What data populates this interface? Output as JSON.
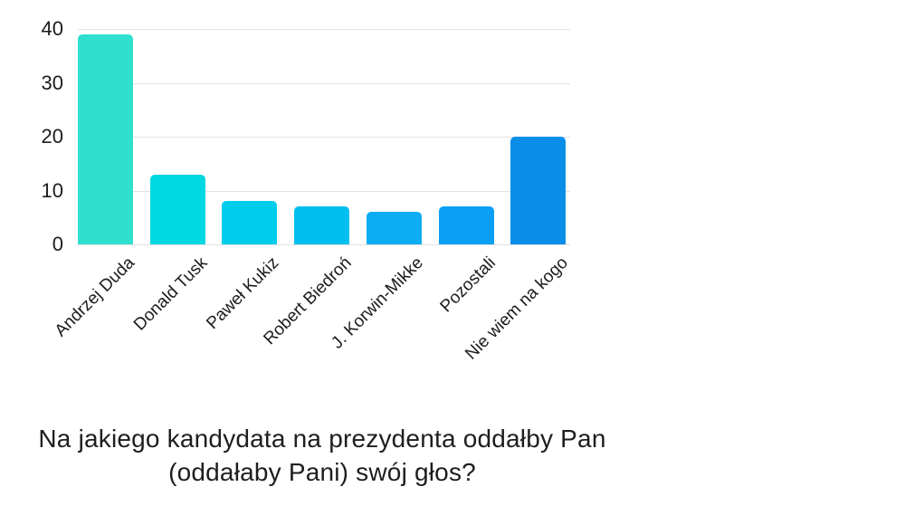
{
  "chart_data": {
    "type": "bar",
    "title": "Na jakiego kandydata na prezydenta oddałby Pan (oddałaby Pani) swój głos?",
    "title_lines": [
      "Na jakiego kandydata na prezydenta oddałby Pan",
      "(oddałaby Pani) swój głos?"
    ],
    "categories": [
      "Andrzej Duda",
      "Donald Tusk",
      "Paweł Kukiz",
      "Robert Biedroń",
      "J. Korwin-Mikke",
      "Pozostali",
      "Nie wiem na kogo"
    ],
    "values": [
      39,
      13,
      8,
      7,
      6,
      7,
      20
    ],
    "bar_colors": [
      "#2ee0cd",
      "#00d8e2",
      "#00cdeb",
      "#00bff0",
      "#0cadf2",
      "#0a9ff3",
      "#0a8fe9"
    ],
    "xlabel": "",
    "ylabel": "",
    "ylim": [
      0,
      40
    ],
    "yticks": [
      0,
      10,
      20,
      30,
      40
    ],
    "grid": true,
    "legend": "none",
    "background": "#ffffff",
    "gridline_color": "#e2e2e2",
    "text_color": "#1c1c1c"
  }
}
